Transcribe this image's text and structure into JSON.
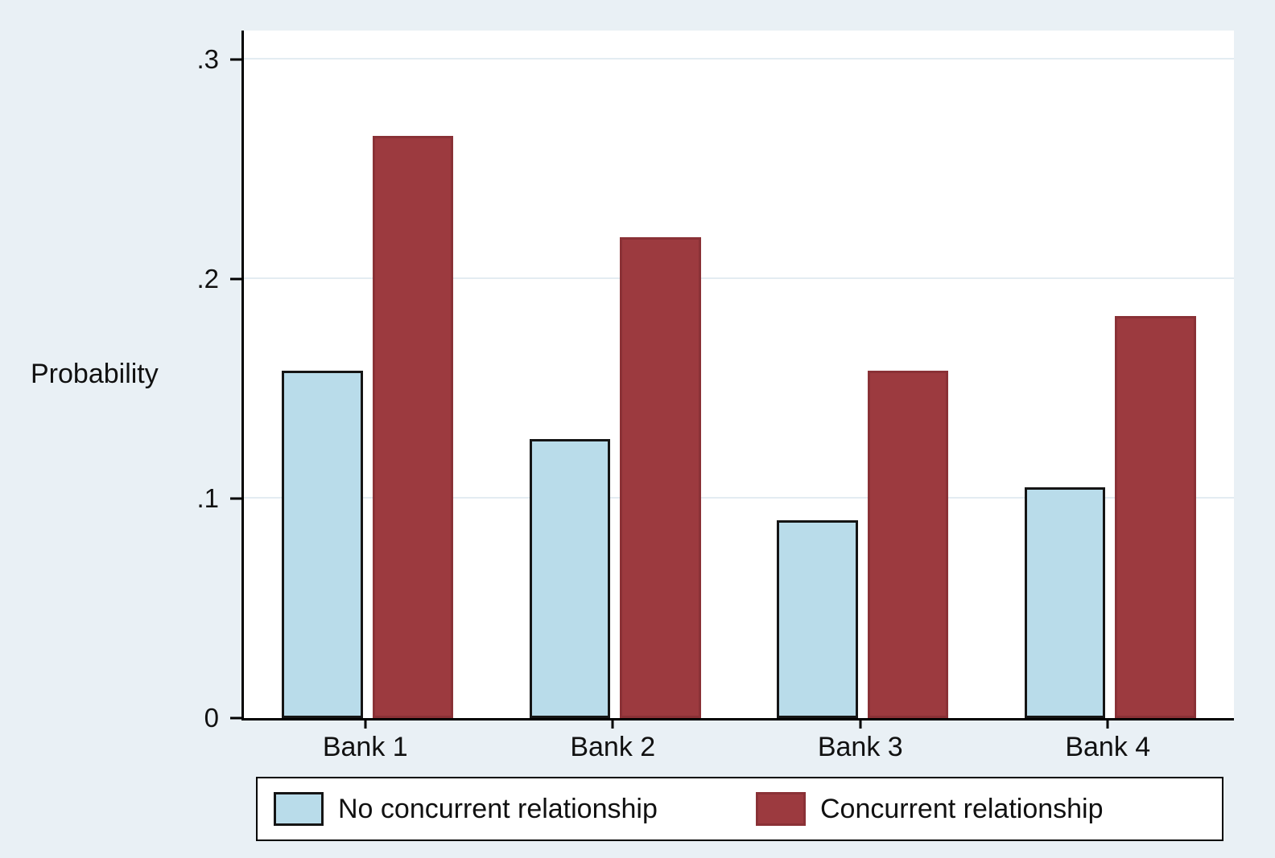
{
  "chart_data": {
    "type": "bar",
    "title": "",
    "categories": [
      "Bank 1",
      "Bank 2",
      "Bank 3",
      "Bank 4"
    ],
    "series": [
      {
        "name": "No concurrent relationship",
        "color": "#b9dcea",
        "values": [
          0.158,
          0.127,
          0.09,
          0.105
        ]
      },
      {
        "name": "Concurrent relationship",
        "color": "#9c3a3f",
        "values": [
          0.265,
          0.219,
          0.158,
          0.183
        ]
      }
    ],
    "xlabel": "",
    "ylabel": "Probability",
    "yticks": [
      {
        "label": "0",
        "value": 0
      },
      {
        "label": ".1",
        "value": 0.1
      },
      {
        "label": ".2",
        "value": 0.2
      },
      {
        "label": ".3",
        "value": 0.3
      }
    ],
    "ylim": [
      0,
      0.313
    ],
    "grid": true,
    "legend_position": "bottom",
    "background_color": "#e9f0f5",
    "plot_background_color": "#ffffff"
  }
}
